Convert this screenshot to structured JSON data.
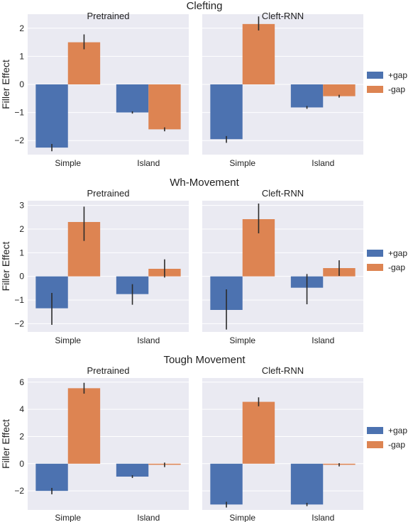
{
  "colors": {
    "plus_gap": "#4c72b0",
    "minus_gap": "#dd8452",
    "panel_bg": "#eaeaf2",
    "grid": "#ffffff",
    "errbar": "#2b2b2b"
  },
  "legend": {
    "items": [
      "+gap",
      "-gap"
    ]
  },
  "chart_data": [
    {
      "type": "bar",
      "row_title": "Clefting",
      "ylabel": "Filler Effect",
      "ylim": [
        -2.5,
        2.5
      ],
      "yticks": [
        -2,
        -1,
        0,
        1,
        2
      ],
      "categories": [
        "Simple",
        "Island"
      ],
      "panels": [
        {
          "title": "Pretrained",
          "series": [
            {
              "name": "+gap",
              "values": [
                -2.25,
                -1.0
              ],
              "err_low": [
                -2.38,
                -1.04
              ],
              "err_high": [
                -2.12,
                -0.96
              ]
            },
            {
              "name": "-gap",
              "values": [
                1.5,
                -1.6
              ],
              "err_low": [
                1.25,
                -1.67
              ],
              "err_high": [
                1.78,
                -1.53
              ]
            }
          ]
        },
        {
          "title": "Cleft-RNN",
          "series": [
            {
              "name": "+gap",
              "values": [
                -1.95,
                -0.82
              ],
              "err_low": [
                -2.08,
                -0.87
              ],
              "err_high": [
                -1.84,
                -0.77
              ]
            },
            {
              "name": "-gap",
              "values": [
                2.15,
                -0.42
              ],
              "err_low": [
                1.92,
                -0.47
              ],
              "err_high": [
                2.42,
                -0.37
              ]
            }
          ]
        }
      ]
    },
    {
      "type": "bar",
      "row_title": "Wh-Movement",
      "ylabel": "Filler Effect",
      "ylim": [
        -2.35,
        3.2
      ],
      "yticks": [
        -2,
        -1,
        0,
        1,
        2,
        3
      ],
      "categories": [
        "Simple",
        "Island"
      ],
      "panels": [
        {
          "title": "Pretrained",
          "series": [
            {
              "name": "+gap",
              "values": [
                -1.35,
                -0.75
              ],
              "err_low": [
                -2.05,
                -1.2
              ],
              "err_high": [
                -0.7,
                -0.33
              ]
            },
            {
              "name": "-gap",
              "values": [
                2.3,
                0.32
              ],
              "err_low": [
                1.5,
                -0.05
              ],
              "err_high": [
                2.95,
                0.72
              ]
            }
          ]
        },
        {
          "title": "Cleft-RNN",
          "series": [
            {
              "name": "+gap",
              "values": [
                -1.42,
                -0.48
              ],
              "err_low": [
                -2.25,
                -1.18
              ],
              "err_high": [
                -0.55,
                0.1
              ]
            },
            {
              "name": "-gap",
              "values": [
                2.42,
                0.35
              ],
              "err_low": [
                1.82,
                0.02
              ],
              "err_high": [
                3.08,
                0.68
              ]
            }
          ]
        }
      ]
    },
    {
      "type": "bar",
      "row_title": "Tough Movement",
      "ylabel": "Filler Effect",
      "ylim": [
        -3.4,
        6.3
      ],
      "yticks": [
        -2,
        0,
        2,
        4,
        6
      ],
      "categories": [
        "Simple",
        "Island"
      ],
      "panels": [
        {
          "title": "Pretrained",
          "series": [
            {
              "name": "+gap",
              "values": [
                -2.0,
                -0.95
              ],
              "err_low": [
                -2.25,
                -1.05
              ],
              "err_high": [
                -1.78,
                -0.85
              ]
            },
            {
              "name": "-gap",
              "values": [
                5.55,
                -0.08
              ],
              "err_low": [
                5.15,
                -0.25
              ],
              "err_high": [
                5.95,
                0.08
              ]
            }
          ]
        },
        {
          "title": "Cleft-RNN",
          "series": [
            {
              "name": "+gap",
              "values": [
                -3.0,
                -3.0
              ],
              "err_low": [
                -3.22,
                -3.12
              ],
              "err_high": [
                -2.8,
                -2.88
              ]
            },
            {
              "name": "-gap",
              "values": [
                4.55,
                -0.08
              ],
              "err_low": [
                4.22,
                -0.2
              ],
              "err_high": [
                4.88,
                0.04
              ]
            }
          ]
        }
      ]
    }
  ]
}
